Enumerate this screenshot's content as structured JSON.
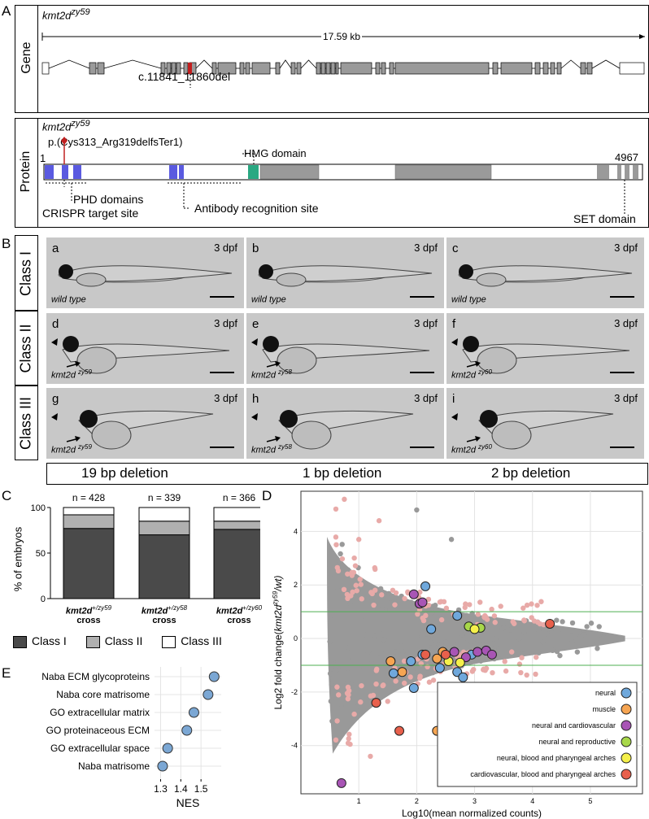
{
  "panelA": {
    "label": "A",
    "gene": {
      "row_label": "Gene",
      "title_main": "kmt2d",
      "title_sup": "zy59",
      "size_label": "17.59 kb",
      "mutation_label": "c.11841_11860del"
    },
    "protein": {
      "row_label": "Protein",
      "title_main": "kmt2d",
      "title_sup": "zy59",
      "start_label": "1",
      "mutation_label": "p.(Cys313_Arg319delfsTer1)",
      "hmg_label": "HMG domain",
      "end_label": "4967",
      "phd_label": "PHD domains",
      "crispr_label": "CRISPR target site",
      "antibody_label": "Antibody recognition site",
      "set_label": "SET domain"
    }
  },
  "panelB": {
    "label": "B",
    "classes": [
      "Class I",
      "Class II",
      "Class III"
    ],
    "photos": [
      {
        "letter": "a",
        "dpf": "3 dpf",
        "genotype": "wild type",
        "sup": ""
      },
      {
        "letter": "b",
        "dpf": "3 dpf",
        "genotype": "wild type",
        "sup": ""
      },
      {
        "letter": "c",
        "dpf": "3 dpf",
        "genotype": "wild type",
        "sup": ""
      },
      {
        "letter": "d",
        "dpf": "3 dpf",
        "genotype": "kmt2d",
        "sup": "zy59"
      },
      {
        "letter": "e",
        "dpf": "3 dpf",
        "genotype": "kmt2d",
        "sup": "zy58"
      },
      {
        "letter": "f",
        "dpf": "3 dpf",
        "genotype": "kmt2d",
        "sup": "zy60"
      },
      {
        "letter": "g",
        "dpf": "3 dpf",
        "genotype": "kmt2d",
        "sup": "zy59"
      },
      {
        "letter": "h",
        "dpf": "3 dpf",
        "genotype": "kmt2d",
        "sup": "zy58"
      },
      {
        "letter": "i",
        "dpf": "3 dpf",
        "genotype": "kmt2d",
        "sup": "zy60"
      }
    ],
    "deletions": [
      "19 bp deletion",
      "1 bp deletion",
      "2 bp deletion"
    ]
  },
  "chart_data": [
    {
      "panel": "C",
      "type": "bar",
      "stacked": true,
      "ylabel": "% of embryos",
      "ylim": [
        0,
        100
      ],
      "yticks": [
        0,
        50,
        100
      ],
      "categories": [
        {
          "main": "kmt2d",
          "sup": "+/zy59",
          "line2": "cross"
        },
        {
          "main": "kmt2d",
          "sup": "+/zy58",
          "line2": "cross"
        },
        {
          "main": "kmt2d",
          "sup": "+/zy60",
          "line2": "cross"
        }
      ],
      "n_labels": [
        "n = 428",
        "n = 339",
        "n = 366"
      ],
      "series": [
        {
          "name": "Class I",
          "color": "#4a4a4a",
          "values": [
            77,
            70,
            76
          ]
        },
        {
          "name": "Class II",
          "color": "#b0b0b0",
          "values": [
            15,
            15,
            9
          ]
        },
        {
          "name": "Class III",
          "color": "#ffffff",
          "values": [
            8,
            15,
            15
          ]
        }
      ]
    },
    {
      "panel": "D",
      "type": "scatter",
      "xlabel": "Log10(mean normalized counts)",
      "ylabel_main": "Log2 fold change(",
      "ylabel_italic": "kmt2d",
      "ylabel_sup": "zy59",
      "ylabel_end": "/wt)",
      "xlim": [
        0,
        5.9
      ],
      "ylim": [
        -5.8,
        5.5
      ],
      "xticks": [
        1,
        2,
        3,
        4,
        5
      ],
      "yticks": [
        -4,
        -2,
        0,
        2,
        4
      ],
      "hlines": [
        1,
        -1
      ],
      "background_color": "#999999",
      "sig_color": "#e8aaa8",
      "legend": [
        {
          "name": "neural",
          "color": "#6fa8dc"
        },
        {
          "name": "muscle",
          "color": "#f6a552"
        },
        {
          "name": "neural and cardiovascular",
          "color": "#a855b5"
        },
        {
          "name": "neural and reproductive",
          "color": "#a8d84a"
        },
        {
          "name": "neural, blood and pharyngeal arches",
          "color": "#f5f04a"
        },
        {
          "name": "cardiovascular, blood and pharyngeal arches",
          "color": "#e8604c"
        }
      ],
      "highlighted": [
        {
          "x": 2.15,
          "y": 1.95,
          "cat": 0
        },
        {
          "x": 2.7,
          "y": 0.85,
          "cat": 0
        },
        {
          "x": 2.25,
          "y": 0.35,
          "cat": 0
        },
        {
          "x": 2.05,
          "y": 1.3,
          "cat": 2
        },
        {
          "x": 1.95,
          "y": 1.65,
          "cat": 2
        },
        {
          "x": 2.1,
          "y": 1.35,
          "cat": 2
        },
        {
          "x": 3.1,
          "y": 0.4,
          "cat": 3
        },
        {
          "x": 2.9,
          "y": 0.45,
          "cat": 3
        },
        {
          "x": 3.0,
          "y": 0.35,
          "cat": 4
        },
        {
          "x": 2.55,
          "y": -0.85,
          "cat": 4
        },
        {
          "x": 4.3,
          "y": 0.55,
          "cat": 5
        },
        {
          "x": 1.55,
          "y": -0.85,
          "cat": 1
        },
        {
          "x": 1.75,
          "y": -1.25,
          "cat": 1
        },
        {
          "x": 2.35,
          "y": -0.75,
          "cat": 1
        },
        {
          "x": 2.45,
          "y": -0.5,
          "cat": 1
        },
        {
          "x": 2.35,
          "y": -3.45,
          "cat": 1
        },
        {
          "x": 1.6,
          "y": -1.3,
          "cat": 0
        },
        {
          "x": 1.9,
          "y": -0.85,
          "cat": 0
        },
        {
          "x": 2.1,
          "y": -0.6,
          "cat": 0
        },
        {
          "x": 2.7,
          "y": -1.25,
          "cat": 0
        },
        {
          "x": 2.8,
          "y": -1.45,
          "cat": 0
        },
        {
          "x": 2.95,
          "y": -0.6,
          "cat": 0
        },
        {
          "x": 1.95,
          "y": -1.85,
          "cat": 0
        },
        {
          "x": 2.4,
          "y": -1.1,
          "cat": 0
        },
        {
          "x": 2.65,
          "y": -0.5,
          "cat": 2
        },
        {
          "x": 2.85,
          "y": -0.7,
          "cat": 2
        },
        {
          "x": 3.05,
          "y": -0.5,
          "cat": 2
        },
        {
          "x": 3.2,
          "y": -0.45,
          "cat": 2
        },
        {
          "x": 3.3,
          "y": -0.6,
          "cat": 2
        },
        {
          "x": 0.7,
          "y": -5.4,
          "cat": 2
        },
        {
          "x": 2.15,
          "y": -0.6,
          "cat": 5
        },
        {
          "x": 2.5,
          "y": -0.6,
          "cat": 5
        },
        {
          "x": 1.3,
          "y": -2.4,
          "cat": 5
        },
        {
          "x": 1.7,
          "y": -3.45,
          "cat": 5
        },
        {
          "x": 2.75,
          "y": -0.9,
          "cat": 4
        }
      ]
    },
    {
      "panel": "E",
      "type": "scatter",
      "xlabel": "NES",
      "xlim": [
        1.27,
        1.6
      ],
      "xticks": [
        1.3,
        1.4,
        1.5
      ],
      "xtick_labels": [
        "1.3",
        "1.4",
        "1.5"
      ],
      "categories": [
        "Naba ECM glycoproteins",
        "Naba core matrisome",
        "GO extracellular matrix",
        "GO proteinaceous ECM",
        "GO extracellular space",
        "Naba matrisome"
      ],
      "values": [
        1.565,
        1.535,
        1.465,
        1.43,
        1.335,
        1.31
      ],
      "color": "#7ba7d4"
    }
  ]
}
